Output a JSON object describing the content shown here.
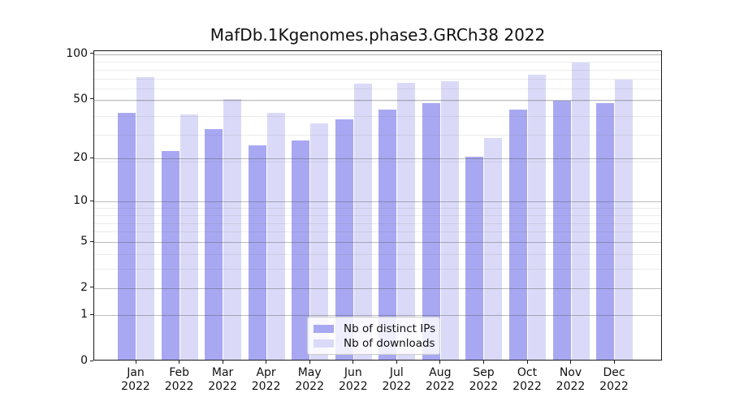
{
  "title": "MafDb.1Kgenomes.phase3.GRCh38 2022",
  "chart_data": {
    "type": "bar",
    "title": "MafDb.1Kgenomes.phase3.GRCh38 2022",
    "categories": [
      "Jan",
      "Feb",
      "Mar",
      "Apr",
      "May",
      "Jun",
      "Jul",
      "Aug",
      "Sep",
      "Oct",
      "Nov",
      "Dec"
    ],
    "year_label": "2022",
    "series": [
      {
        "name": "Nb of distinct IPs",
        "color": "#a8a8f2",
        "values": [
          40,
          22,
          31,
          24,
          26,
          36,
          42,
          46,
          20,
          42,
          48,
          46
        ]
      },
      {
        "name": "Nb of downloads",
        "color": "#dadaf8",
        "values": [
          69,
          39,
          49,
          40,
          34,
          62,
          63,
          65,
          27,
          71,
          86,
          66
        ]
      }
    ],
    "yscale": "log1p",
    "y_ticks": [
      0,
      1,
      2,
      5,
      10,
      20,
      50,
      100
    ],
    "y_minor_gridlines": [
      3,
      4,
      6,
      7,
      8,
      9,
      19,
      29,
      39,
      49,
      59,
      69,
      79,
      89,
      99
    ],
    "ylim": [
      0,
      104.5
    ],
    "grid": "both",
    "legend_position": "lower center"
  }
}
